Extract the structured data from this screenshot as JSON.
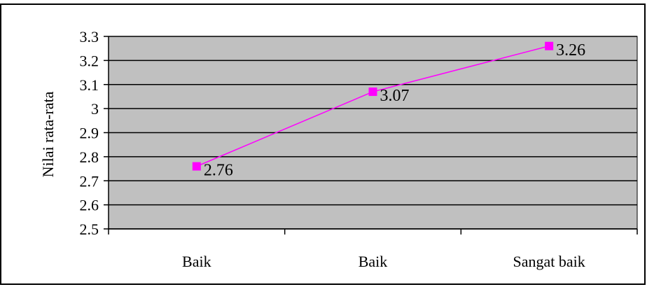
{
  "chart_data": {
    "type": "line",
    "title": "",
    "xlabel": "",
    "ylabel": "Nilai rata-rata",
    "categories": [
      "Baik",
      "Baik",
      "Sangat baik"
    ],
    "series": [
      {
        "values": [
          2.76,
          3.07,
          3.26
        ],
        "data_labels": [
          "2.76",
          "3.07",
          "3.26"
        ]
      }
    ],
    "ylim": [
      2.5,
      3.3
    ],
    "yticks": [
      "2.5",
      "2.6",
      "2.7",
      "2.8",
      "2.9",
      "3",
      "3.1",
      "3.2",
      "3.3"
    ],
    "grid": true,
    "legend": "none",
    "colors": {
      "plot_background": "#c0c0c0",
      "series_line": "#ff00ff",
      "gridline": "#000000",
      "frame": "#000000"
    }
  }
}
